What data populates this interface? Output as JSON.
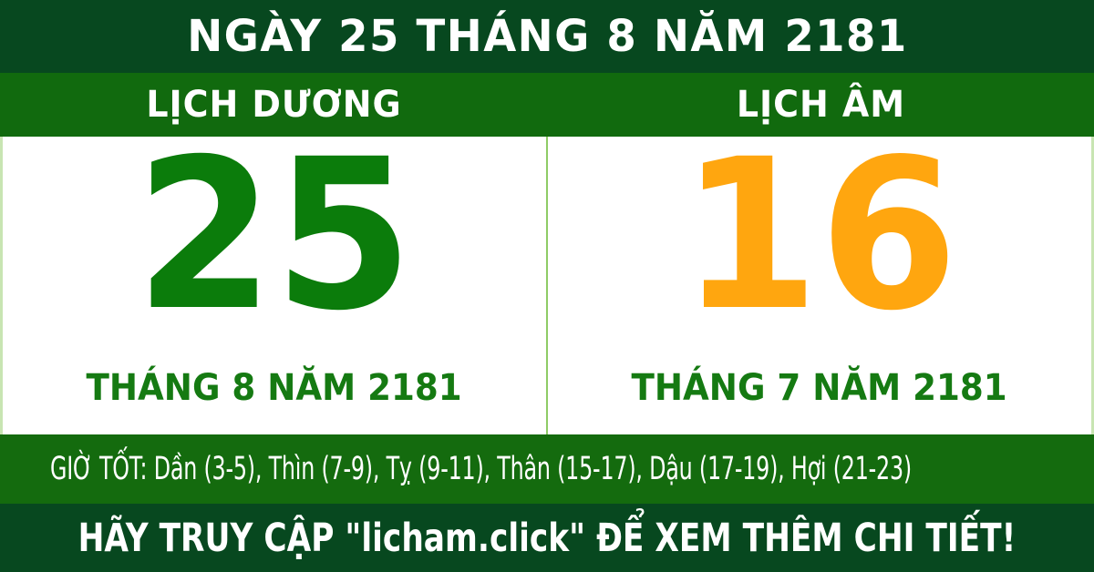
{
  "header": {
    "title": "NGÀY 25 THÁNG 8 NĂM 2181"
  },
  "solar": {
    "label": "LỊCH DƯƠNG",
    "day": "25",
    "month_year": "THÁNG 8 NĂM 2181"
  },
  "lunar": {
    "label": "LỊCH ÂM",
    "day": "16",
    "month_year": "THÁNG 7 NĂM 2181"
  },
  "good_hours": {
    "text": "GIỜ TỐT: Dần (3-5), Thìn (7-9), Tỵ (9-11), Thân (15-17), Dậu (17-19), Hợi (21-23)"
  },
  "footer": {
    "text": "HÃY TRUY CẬP \"licham.click\" ĐỂ XEM THÊM CHI TIẾT!"
  },
  "colors": {
    "dark_green": "#07481F",
    "band_green": "#116A0E",
    "hours_green": "#146B0E",
    "day_green": "#0B7C0B",
    "month_green": "#157A12",
    "lunar_orange": "#FFA60F",
    "divider_green": "#8FCC66",
    "edge_green": "#C8E5B2",
    "text_white": "#FFFFFF",
    "panel_white": "#FFFFFF"
  }
}
